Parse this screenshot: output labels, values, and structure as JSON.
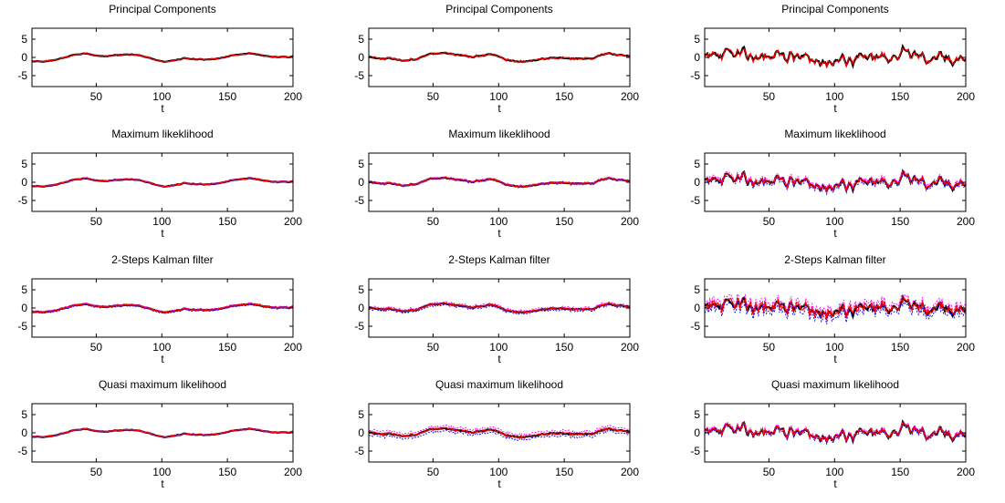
{
  "figure": {
    "layout": {
      "rows": 4,
      "cols": 3
    },
    "colors": {
      "true_factor": "#000000",
      "estimate": "#ff0000",
      "band": "#0000ff",
      "band_alt": "#ff00ff"
    }
  },
  "chart_data": [
    {
      "type": "line",
      "title": "Principal Components",
      "xlabel": "t",
      "xlim": [
        1,
        200
      ],
      "ylim": [
        -8,
        8
      ],
      "xticks": [
        50,
        100,
        150,
        200
      ],
      "yticks": [
        5,
        0,
        -5
      ],
      "seed": 11,
      "amp": 1.0,
      "smooth": 7,
      "noise": 0.18,
      "band": 0.0
    },
    {
      "type": "line",
      "title": "Principal Components",
      "xlabel": "t",
      "xlim": [
        1,
        200
      ],
      "ylim": [
        -8,
        8
      ],
      "xticks": [
        50,
        100,
        150,
        200
      ],
      "yticks": [
        5,
        0,
        -5
      ],
      "seed": 23,
      "amp": 1.0,
      "smooth": 5,
      "noise": 0.3,
      "band": 0.0
    },
    {
      "type": "line",
      "title": "Principal Components",
      "xlabel": "t",
      "xlim": [
        1,
        200
      ],
      "ylim": [
        -8,
        8
      ],
      "xticks": [
        50,
        100,
        150,
        200
      ],
      "yticks": [
        5,
        0,
        -5
      ],
      "seed": 37,
      "amp": 1.2,
      "smooth": 1,
      "noise": 0.6,
      "band": 0.0
    },
    {
      "type": "line",
      "title": "Maximum likeklihood",
      "xlabel": "t",
      "xlim": [
        1,
        200
      ],
      "ylim": [
        -8,
        8
      ],
      "xticks": [
        50,
        100,
        150,
        200
      ],
      "yticks": [
        5,
        0,
        -5
      ],
      "seed": 11,
      "amp": 1.0,
      "smooth": 7,
      "noise": 0.12,
      "band": 0.15
    },
    {
      "type": "line",
      "title": "Maximum likeklihood",
      "xlabel": "t",
      "xlim": [
        1,
        200
      ],
      "ylim": [
        -8,
        8
      ],
      "xticks": [
        50,
        100,
        150,
        200
      ],
      "yticks": [
        5,
        0,
        -5
      ],
      "seed": 23,
      "amp": 1.0,
      "smooth": 5,
      "noise": 0.2,
      "band": 0.2
    },
    {
      "type": "line",
      "title": "Maximum likeklihood",
      "xlabel": "t",
      "xlim": [
        1,
        200
      ],
      "ylim": [
        -8,
        8
      ],
      "xticks": [
        50,
        100,
        150,
        200
      ],
      "yticks": [
        5,
        0,
        -5
      ],
      "seed": 37,
      "amp": 1.2,
      "smooth": 1,
      "noise": 0.4,
      "band": 0.6
    },
    {
      "type": "line",
      "title": "2-Steps Kalman filter",
      "xlabel": "t",
      "xlim": [
        1,
        200
      ],
      "ylim": [
        -8,
        8
      ],
      "xticks": [
        50,
        100,
        150,
        200
      ],
      "yticks": [
        5,
        0,
        -5
      ],
      "seed": 11,
      "amp": 1.0,
      "smooth": 7,
      "noise": 0.14,
      "band": 0.25
    },
    {
      "type": "line",
      "title": "2-Steps Kalman filter",
      "xlabel": "t",
      "xlim": [
        1,
        200
      ],
      "ylim": [
        -8,
        8
      ],
      "xticks": [
        50,
        100,
        150,
        200
      ],
      "yticks": [
        5,
        0,
        -5
      ],
      "seed": 23,
      "amp": 1.0,
      "smooth": 5,
      "noise": 0.25,
      "band": 0.4
    },
    {
      "type": "line",
      "title": "2-Steps Kalman filter",
      "xlabel": "t",
      "xlim": [
        1,
        200
      ],
      "ylim": [
        -8,
        8
      ],
      "xticks": [
        50,
        100,
        150,
        200
      ],
      "yticks": [
        5,
        0,
        -5
      ],
      "seed": 37,
      "amp": 1.2,
      "smooth": 1,
      "noise": 1.3,
      "band": 1.1
    },
    {
      "type": "line",
      "title": "Quasi maximum likelihood",
      "xlabel": "t",
      "xlim": [
        1,
        200
      ],
      "ylim": [
        -8,
        8
      ],
      "xticks": [
        50,
        100,
        150,
        200
      ],
      "yticks": [
        5,
        0,
        -5
      ],
      "seed": 11,
      "amp": 1.0,
      "smooth": 7,
      "noise": 0.12,
      "band": 0.12
    },
    {
      "type": "line",
      "title": "Quasi maximum likelihood",
      "xlabel": "t",
      "xlim": [
        1,
        200
      ],
      "ylim": [
        -8,
        8
      ],
      "xticks": [
        50,
        100,
        150,
        200
      ],
      "yticks": [
        5,
        0,
        -5
      ],
      "seed": 23,
      "amp": 1.0,
      "smooth": 5,
      "noise": 0.35,
      "band": 0.7
    },
    {
      "type": "line",
      "title": "Quasi maximum likelihood",
      "xlabel": "t",
      "xlim": [
        1,
        200
      ],
      "ylim": [
        -8,
        8
      ],
      "xticks": [
        50,
        100,
        150,
        200
      ],
      "yticks": [
        5,
        0,
        -5
      ],
      "seed": 37,
      "amp": 1.2,
      "smooth": 1,
      "noise": 0.3,
      "band": 0.5
    }
  ]
}
